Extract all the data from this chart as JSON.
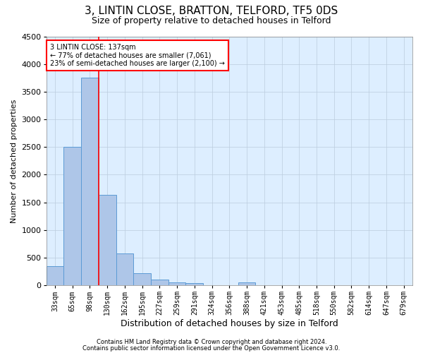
{
  "title": "3, LINTIN CLOSE, BRATTON, TELFORD, TF5 0DS",
  "subtitle": "Size of property relative to detached houses in Telford",
  "xlabel": "Distribution of detached houses by size in Telford",
  "ylabel": "Number of detached properties",
  "footer1": "Contains HM Land Registry data © Crown copyright and database right 2024.",
  "footer2": "Contains public sector information licensed under the Open Government Licence v3.0.",
  "categories": [
    "33sqm",
    "65sqm",
    "98sqm",
    "130sqm",
    "162sqm",
    "195sqm",
    "227sqm",
    "259sqm",
    "291sqm",
    "324sqm",
    "356sqm",
    "388sqm",
    "421sqm",
    "453sqm",
    "485sqm",
    "518sqm",
    "550sqm",
    "582sqm",
    "614sqm",
    "647sqm",
    "679sqm"
  ],
  "values": [
    350,
    2500,
    3750,
    1640,
    580,
    220,
    105,
    60,
    40,
    0,
    0,
    60,
    0,
    0,
    0,
    0,
    0,
    0,
    0,
    0,
    0
  ],
  "bar_color": "#aec6e8",
  "bar_edge_color": "#5b9bd5",
  "vline_x_index": 3,
  "vline_color": "red",
  "annotation_line1": "3 LINTIN CLOSE: 137sqm",
  "annotation_line2": "← 77% of detached houses are smaller (7,061)",
  "annotation_line3": "23% of semi-detached houses are larger (2,100) →",
  "annotation_box_color": "white",
  "annotation_box_edge": "red",
  "ylim": [
    0,
    4500
  ],
  "bg_color": "#ffffff",
  "plot_bg_color": "#ddeeff",
  "grid_color": "#bbccdd",
  "title_fontsize": 11,
  "subtitle_fontsize": 9,
  "ylabel_fontsize": 8,
  "xlabel_fontsize": 9,
  "tick_fontsize": 7,
  "footer_fontsize": 6
}
